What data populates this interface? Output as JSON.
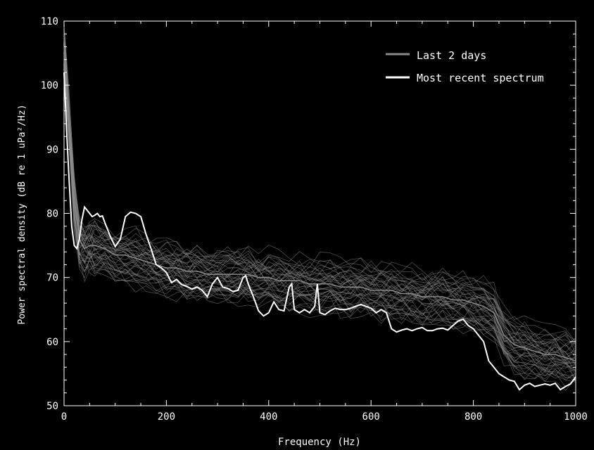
{
  "chart_data": {
    "type": "line",
    "xlabel": "Frequency (Hz)",
    "ylabel": "Power spectral density (dB re 1 uPa²/Hz)",
    "xlim": [
      0,
      1000
    ],
    "ylim": [
      50,
      110
    ],
    "xticks": [
      0,
      200,
      400,
      600,
      800,
      1000
    ],
    "yticks": [
      50,
      60,
      70,
      80,
      90,
      100,
      110
    ],
    "legend": {
      "placement": "top-right",
      "entries": [
        {
          "label": "Last 2 days",
          "color": "#8a8a8a"
        },
        {
          "label": "Most recent spectrum",
          "color": "#ffffff"
        }
      ]
    },
    "series": [
      {
        "name": "Most recent spectrum",
        "color": "#ffffff",
        "x": [
          0,
          5,
          10,
          15,
          20,
          25,
          30,
          35,
          40,
          45,
          50,
          55,
          60,
          65,
          70,
          75,
          80,
          90,
          100,
          110,
          120,
          130,
          140,
          150,
          160,
          170,
          180,
          190,
          200,
          210,
          220,
          230,
          240,
          250,
          260,
          270,
          280,
          290,
          300,
          310,
          320,
          330,
          340,
          350,
          355,
          360,
          370,
          380,
          390,
          400,
          410,
          420,
          430,
          440,
          445,
          450,
          460,
          470,
          480,
          490,
          495,
          500,
          510,
          520,
          530,
          540,
          550,
          560,
          570,
          580,
          590,
          600,
          610,
          620,
          630,
          640,
          650,
          660,
          670,
          680,
          690,
          700,
          710,
          720,
          730,
          740,
          750,
          760,
          770,
          780,
          790,
          800,
          810,
          820,
          830,
          840,
          850,
          860,
          870,
          880,
          890,
          900,
          910,
          920,
          930,
          940,
          950,
          960,
          970,
          980,
          990,
          1000
        ],
        "values": [
          102,
          93,
          85,
          78,
          75,
          74.5,
          76,
          79,
          81,
          80.5,
          80,
          79.5,
          79.7,
          80,
          79.5,
          79.6,
          78.5,
          76.5,
          74.8,
          76,
          79.5,
          80.2,
          80,
          79.5,
          76.8,
          74.5,
          72,
          71.5,
          70.8,
          69.2,
          69.7,
          68.9,
          68.6,
          68.2,
          68.5,
          68,
          67,
          69,
          70,
          68.5,
          68.3,
          67.8,
          68,
          70,
          70.3,
          69,
          67,
          64.8,
          64,
          64.5,
          66.2,
          65,
          64.8,
          68.5,
          69,
          65,
          64.5,
          65,
          64.5,
          65.5,
          69,
          64.5,
          64.2,
          64.8,
          65.2,
          65,
          65,
          65.2,
          65.5,
          65.8,
          65.5,
          65.2,
          64.5,
          65,
          64.5,
          62,
          61.5,
          61.8,
          62,
          61.7,
          62,
          62.2,
          61.7,
          61.7,
          62,
          62.1,
          61.8,
          62.5,
          63.2,
          63.5,
          62.5,
          62,
          61,
          60,
          57,
          56,
          55,
          54.5,
          54,
          53.8,
          52.5,
          53.2,
          53.5,
          53,
          53.2,
          53.4,
          53.2,
          53.5,
          52.5,
          53,
          53.4,
          54.5
        ]
      },
      {
        "name": "Last 2 days",
        "color": "#8a8a8a",
        "x": [
          0,
          10,
          20,
          30,
          40,
          50,
          60,
          80,
          100,
          120,
          140,
          160,
          180,
          200,
          220,
          240,
          260,
          280,
          300,
          320,
          340,
          360,
          380,
          400,
          420,
          440,
          460,
          480,
          500,
          520,
          540,
          560,
          580,
          600,
          620,
          640,
          660,
          680,
          700,
          720,
          740,
          760,
          780,
          800,
          820,
          840,
          860,
          880,
          900,
          920,
          940,
          960,
          980,
          1000
        ],
        "values": [
          106,
          94,
          82,
          76,
          74.5,
          75,
          75,
          74.5,
          73.5,
          73.5,
          73,
          72.5,
          72,
          71.5,
          71.5,
          71,
          71,
          70.5,
          70.5,
          70.5,
          70.5,
          70.5,
          70,
          70,
          69.5,
          69.5,
          69.5,
          69,
          69,
          69,
          68.5,
          68.5,
          68.5,
          68,
          68,
          68,
          67.5,
          67.5,
          67,
          67,
          67,
          66.5,
          66.5,
          66,
          65.5,
          64.5,
          61,
          59.5,
          59,
          58.5,
          58,
          58,
          57.5,
          57
        ]
      }
    ]
  }
}
